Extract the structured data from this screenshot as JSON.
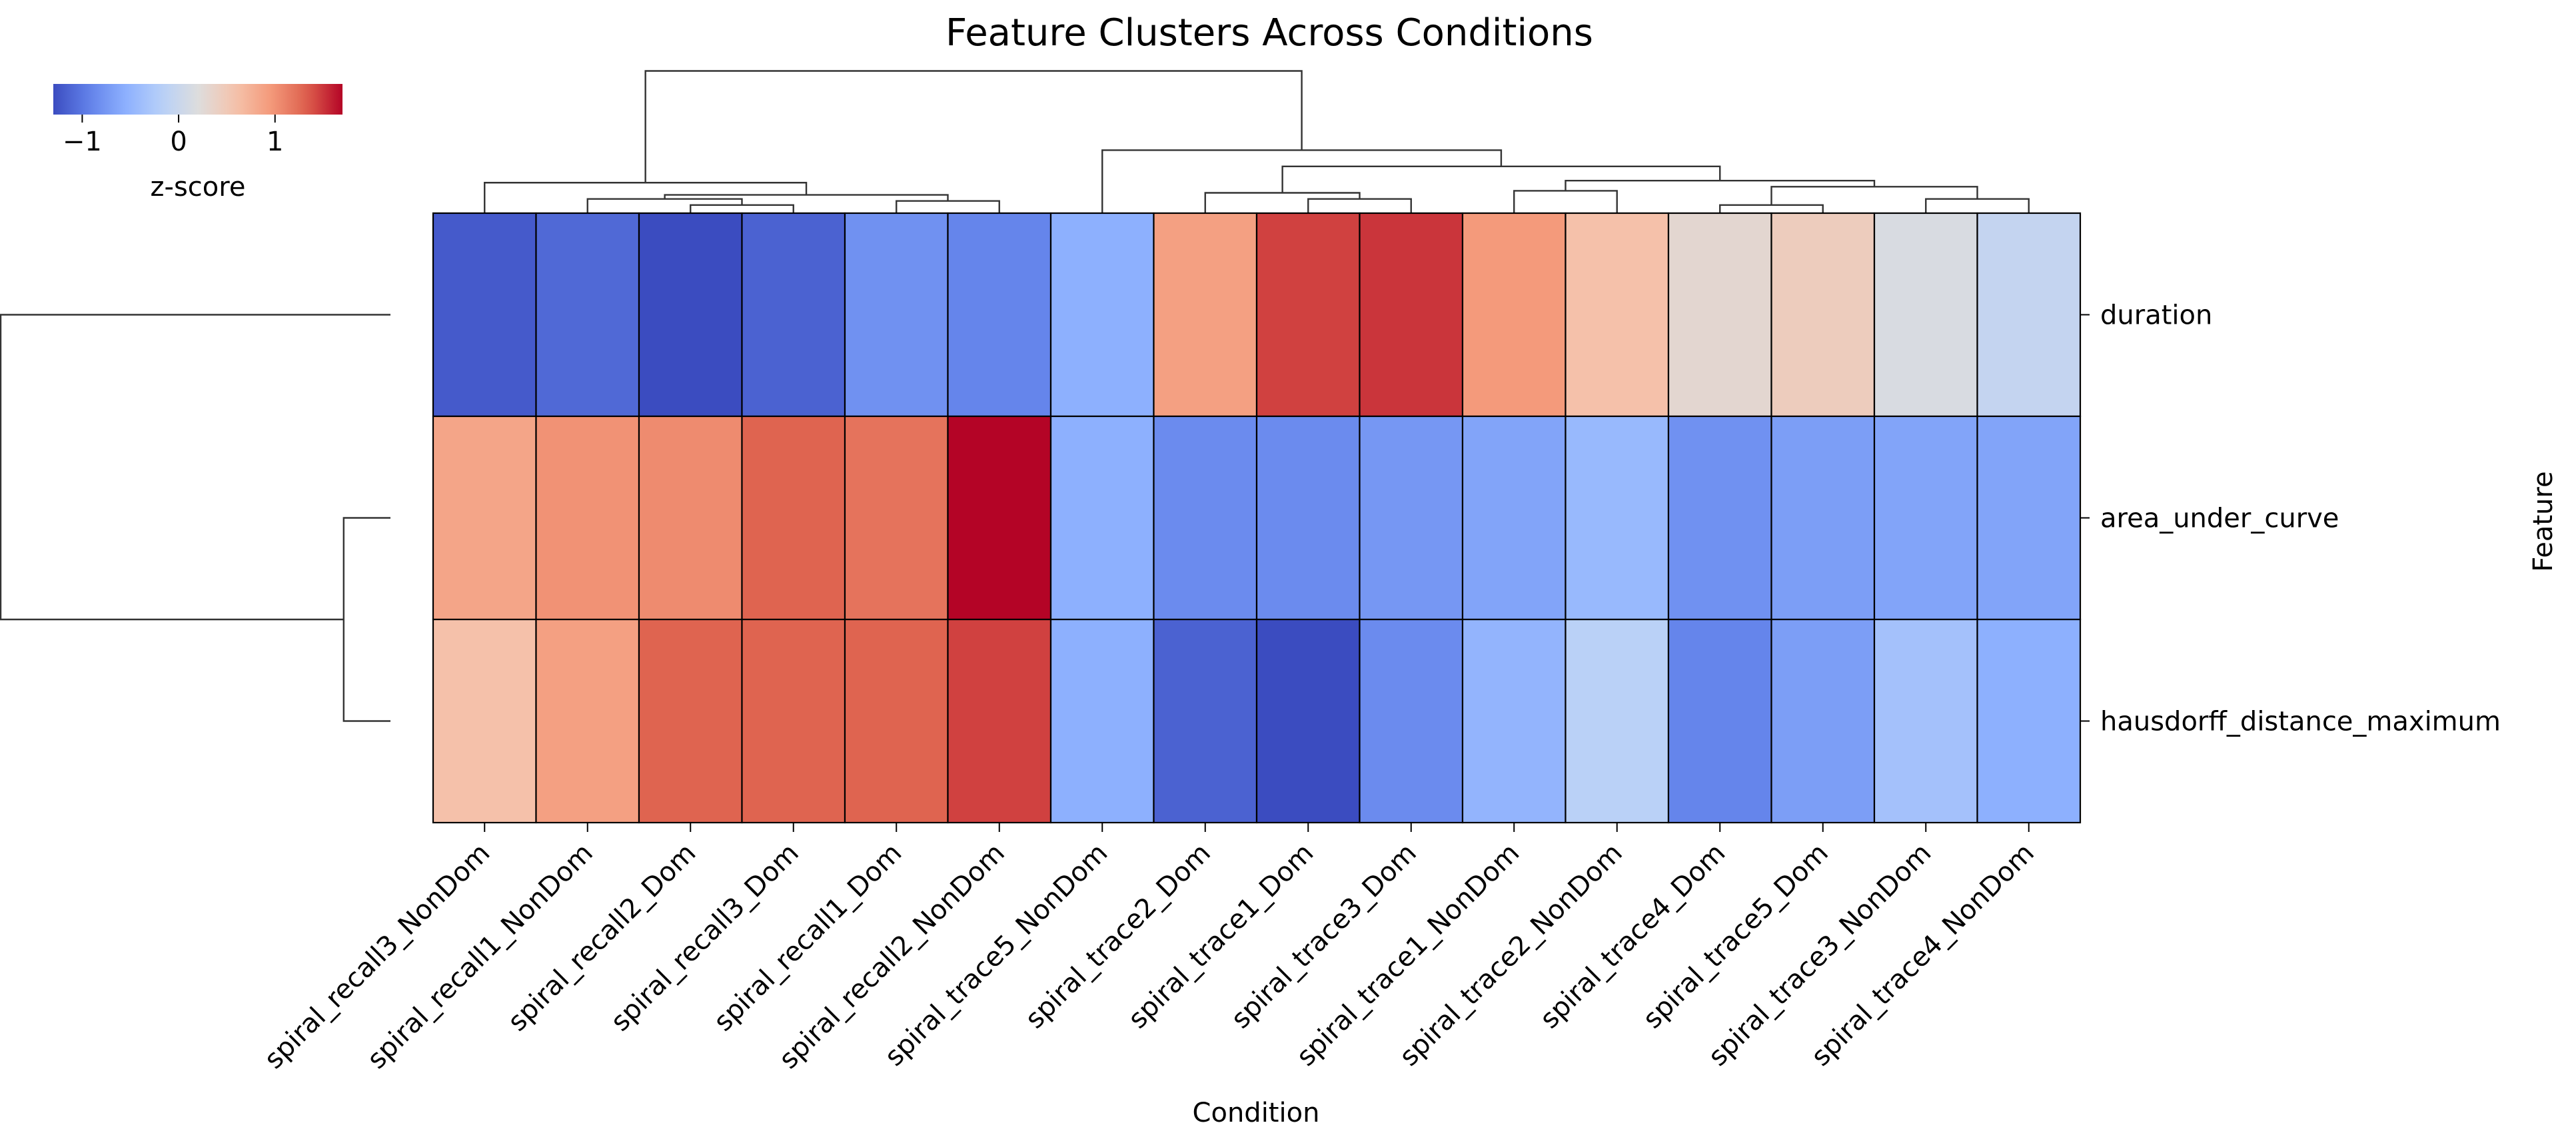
{
  "chart_data": {
    "type": "heatmap",
    "title": "Feature Clusters Across Conditions",
    "xlabel": "Condition",
    "ylabel": "Feature",
    "columns": [
      "spiral_recall3_NonDom",
      "spiral_recall1_NonDom",
      "spiral_recall2_Dom",
      "spiral_recall3_Dom",
      "spiral_recall1_Dom",
      "spiral_recall2_NonDom",
      "spiral_trace5_NonDom",
      "spiral_trace2_Dom",
      "spiral_trace1_Dom",
      "spiral_trace3_Dom",
      "spiral_trace1_NonDom",
      "spiral_trace2_NonDom",
      "spiral_trace4_Dom",
      "spiral_trace5_Dom",
      "spiral_trace3_NonDom",
      "spiral_trace4_NonDom"
    ],
    "rows": [
      "duration",
      "area_under_curve",
      "hausdorff_distance_maximum"
    ],
    "values": [
      [
        -1.2,
        -1.1,
        -1.3,
        -1.15,
        -0.8,
        -0.9,
        -0.55,
        0.9,
        1.45,
        1.5,
        0.95,
        0.6,
        0.3,
        0.45,
        0.15,
        -0.05
      ],
      [
        0.85,
        1.0,
        1.05,
        1.3,
        1.2,
        1.7,
        -0.55,
        -0.85,
        -0.85,
        -0.75,
        -0.65,
        -0.45,
        -0.8,
        -0.7,
        -0.65,
        -0.65
      ],
      [
        0.6,
        0.9,
        1.3,
        1.3,
        1.3,
        1.45,
        -0.55,
        -1.15,
        -1.3,
        -0.85,
        -0.5,
        -0.15,
        -0.9,
        -0.7,
        -0.35,
        -0.55
      ]
    ],
    "colormap": "coolwarm",
    "colorbar": {
      "label": "z-score",
      "ticks": [
        -1,
        0,
        1
      ],
      "tick_labels": [
        "−1",
        "0",
        "1"
      ],
      "vmin": -1.3,
      "vmax": 1.7
    },
    "col_dendrogram": {
      "leaf_order": [
        0,
        1,
        2,
        3,
        4,
        5,
        6,
        7,
        8,
        9,
        10,
        11,
        12,
        13,
        14,
        15
      ],
      "links": [
        {
          "a": 2,
          "b": 3,
          "height": 0.4
        },
        {
          "a": 1,
          "b": "n0",
          "height": 0.7
        },
        {
          "a": 4,
          "b": 5,
          "height": 0.6
        },
        {
          "a": "n1",
          "b": "n2",
          "height": 0.9
        },
        {
          "a": 0,
          "b": "n3",
          "height": 1.5
        },
        {
          "a": 8,
          "b": 9,
          "height": 0.7
        },
        {
          "a": 7,
          "b": "n5",
          "height": 1.0
        },
        {
          "a": 10,
          "b": 11,
          "height": 1.1
        },
        {
          "a": 12,
          "b": 13,
          "height": 0.4
        },
        {
          "a": 14,
          "b": 15,
          "height": 0.7
        },
        {
          "a": "n8",
          "b": "n9",
          "height": 1.3
        },
        {
          "a": "n7",
          "b": "n10",
          "height": 1.6
        },
        {
          "a": "n6",
          "b": "n11",
          "height": 2.3
        },
        {
          "a": 6,
          "b": "n12",
          "height": 3.1
        },
        {
          "a": "n4",
          "b": "n13",
          "height": 7.0
        }
      ]
    },
    "row_dendrogram": {
      "leaf_order": [
        0,
        1,
        2
      ],
      "links": [
        {
          "a": 1,
          "b": 2,
          "height": 0.6
        },
        {
          "a": 0,
          "b": "n0",
          "height": 5.0
        }
      ]
    }
  }
}
